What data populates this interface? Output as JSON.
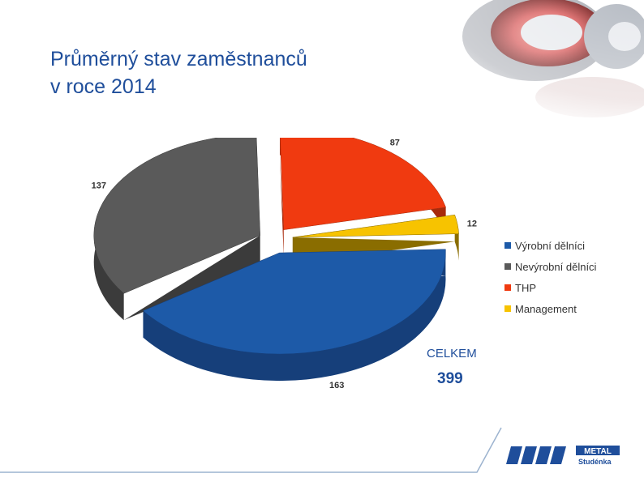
{
  "slide": {
    "title_line1": "Průměrný stav zaměstnanců",
    "title_line2": "v roce 2014",
    "title_color": "#1f4e9b",
    "total_label": "CELKEM",
    "total_value": "399",
    "logo_text_top": "METAL",
    "logo_text_bottom": "Studénka",
    "logo_color": "#1f4e9b"
  },
  "chart_data": {
    "type": "pie",
    "style": "3d-exploded",
    "legend_position": "right",
    "categories": [
      "Výrobní dělníci",
      "Nevýrobní dělníci",
      "THP",
      "Management"
    ],
    "values": [
      163,
      137,
      87,
      12
    ],
    "data_labels": [
      "163",
      "137",
      "87",
      "12"
    ],
    "colors": [
      "#1d5aa8",
      "#5a5a5a",
      "#f03a10",
      "#f7c300"
    ],
    "side_colors": [
      "#163f7a",
      "#3b3b3b",
      "#a82a0b",
      "#8a6d00"
    ]
  }
}
